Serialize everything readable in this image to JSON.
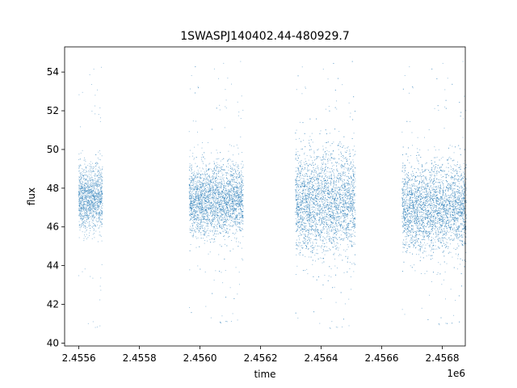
{
  "chart_data": {
    "type": "scatter",
    "title": "1SWASPJ140402.44-480929.7",
    "xlabel": "time",
    "ylabel": "flux",
    "x_offset_label": "1e6",
    "xlim": [
      2455553,
      2456876
    ],
    "ylim": [
      39.85,
      55.3
    ],
    "x_ticks": [
      2455600,
      2455800,
      2456000,
      2456200,
      2456400,
      2456600,
      2456800
    ],
    "x_tick_labels": [
      "2.4556",
      "2.4558",
      "2.4560",
      "2.4562",
      "2.4564",
      "2.4566",
      "2.4568"
    ],
    "y_ticks": [
      40,
      42,
      44,
      46,
      48,
      50,
      52,
      54
    ],
    "y_tick_labels": [
      "40",
      "42",
      "44",
      "46",
      "48",
      "50",
      "52",
      "54"
    ],
    "grid": false,
    "legend": "none",
    "marker_color": "#1f77b4",
    "observing_seasons": [
      {
        "x_start": 2455598,
        "x_end": 2455677,
        "flux_center": 47.5,
        "flux_sd": 0.8,
        "flux_min": 40.6,
        "flux_max": 54.3
      },
      {
        "x_start": 2455963,
        "x_end": 2456142,
        "flux_center": 47.4,
        "flux_sd": 0.9,
        "flux_min": 40.9,
        "flux_max": 54.6
      },
      {
        "x_start": 2456314,
        "x_end": 2456512,
        "flux_center": 47.3,
        "flux_sd": 1.3,
        "flux_min": 40.6,
        "flux_max": 54.6
      },
      {
        "x_start": 2456666,
        "x_end": 2456878,
        "flux_center": 47.0,
        "flux_sd": 1.1,
        "flux_min": 40.8,
        "flux_max": 54.6
      }
    ]
  }
}
